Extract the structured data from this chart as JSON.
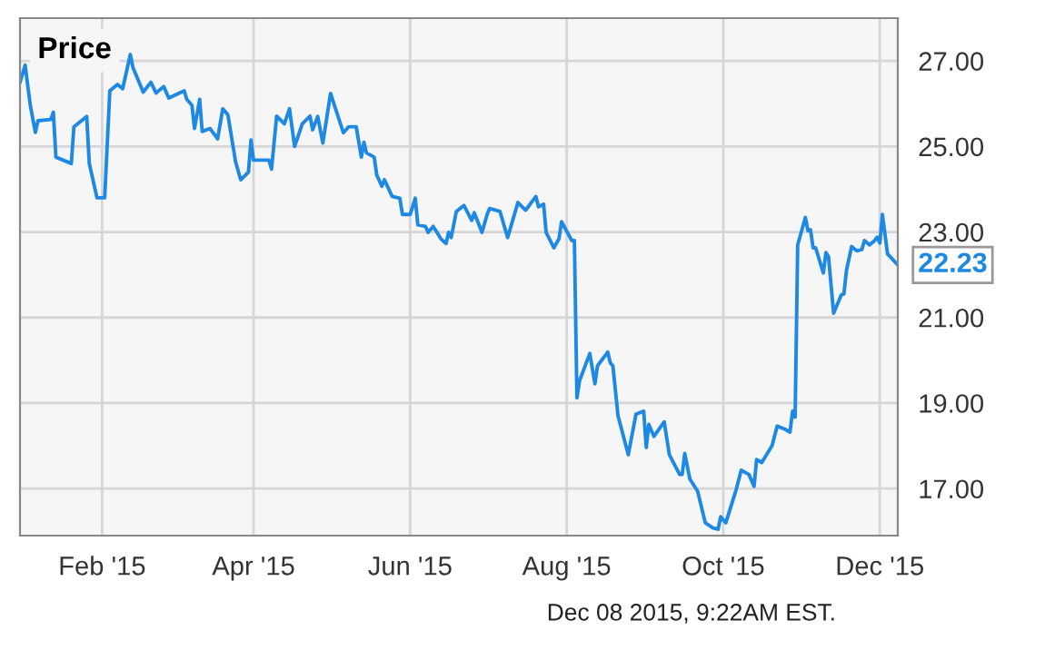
{
  "chart_data": {
    "type": "line",
    "title": "Price",
    "x": [
      "2014-12-31",
      "2015-01-02",
      "2015-01-04",
      "2015-01-06",
      "2015-01-07",
      "2015-01-12",
      "2015-01-13",
      "2015-01-14",
      "2015-01-20",
      "2015-01-21",
      "2015-01-26",
      "2015-01-27",
      "2015-01-30",
      "2015-02-02",
      "2015-02-04",
      "2015-02-07",
      "2015-02-09",
      "2015-02-12",
      "2015-02-13",
      "2015-02-17",
      "2015-02-20",
      "2015-02-22",
      "2015-02-25",
      "2015-02-27",
      "2015-03-05",
      "2015-03-06",
      "2015-03-08",
      "2015-03-09",
      "2015-03-11",
      "2015-03-12",
      "2015-03-15",
      "2015-03-18",
      "2015-03-20",
      "2015-03-22",
      "2015-03-25",
      "2015-03-27",
      "2015-03-30",
      "2015-03-31",
      "2015-04-01",
      "2015-04-07",
      "2015-04-08",
      "2015-04-10",
      "2015-04-13",
      "2015-04-15",
      "2015-04-17",
      "2015-04-20",
      "2015-04-23",
      "2015-04-24",
      "2015-04-26",
      "2015-04-28",
      "2015-05-01",
      "2015-05-06",
      "2015-05-08",
      "2015-05-10",
      "2015-05-11",
      "2015-05-13",
      "2015-05-14",
      "2015-05-15",
      "2015-05-18",
      "2015-05-19",
      "2015-05-21",
      "2015-05-22",
      "2015-05-25",
      "2015-05-28",
      "2015-05-29",
      "2015-06-01",
      "2015-06-03",
      "2015-06-04",
      "2015-06-07",
      "2015-06-08",
      "2015-06-10",
      "2015-06-13",
      "2015-06-15",
      "2015-06-16",
      "2015-06-17",
      "2015-06-19",
      "2015-06-22",
      "2015-06-25",
      "2015-06-26",
      "2015-06-29",
      "2015-07-01",
      "2015-07-02",
      "2015-07-06",
      "2015-07-09",
      "2015-07-13",
      "2015-07-16",
      "2015-07-20",
      "2015-07-21",
      "2015-07-23",
      "2015-07-24",
      "2015-07-27",
      "2015-07-29",
      "2015-07-30",
      "2015-08-03",
      "2015-08-04",
      "2015-08-05",
      "2015-08-06",
      "2015-08-10",
      "2015-08-12",
      "2015-08-13",
      "2015-08-17",
      "2015-08-18",
      "2015-08-19",
      "2015-08-21",
      "2015-08-25",
      "2015-08-28",
      "2015-08-31",
      "2015-09-01",
      "2015-09-02",
      "2015-09-04",
      "2015-09-08",
      "2015-09-10",
      "2015-09-14",
      "2015-09-15",
      "2015-09-16",
      "2015-09-18",
      "2015-09-21",
      "2015-09-24",
      "2015-09-27",
      "2015-09-29",
      "2015-09-30",
      "2015-10-02",
      "2015-10-06",
      "2015-10-08",
      "2015-10-11",
      "2015-10-13",
      "2015-10-14",
      "2015-10-16",
      "2015-10-20",
      "2015-10-22",
      "2015-10-25",
      "2015-10-27",
      "2015-10-28",
      "2015-10-29",
      "2015-10-30",
      "2015-11-02",
      "2015-11-03",
      "2015-11-04",
      "2015-11-05",
      "2015-11-06",
      "2015-11-09",
      "2015-11-10",
      "2015-11-11",
      "2015-11-13",
      "2015-11-16",
      "2015-11-17",
      "2015-11-18",
      "2015-11-20",
      "2015-11-22",
      "2015-11-24",
      "2015-11-25",
      "2015-11-27",
      "2015-11-29",
      "2015-11-30",
      "2015-12-01",
      "2015-12-02",
      "2015-12-04",
      "2015-12-08"
    ],
    "series": [
      {
        "color": "#1e88e5",
        "values": [
          26.5,
          26.9,
          25.97,
          25.33,
          25.6,
          25.63,
          25.8,
          24.75,
          24.6,
          25.46,
          25.7,
          24.6,
          23.8,
          23.8,
          26.3,
          26.45,
          26.35,
          27.15,
          26.85,
          26.27,
          26.5,
          26.25,
          26.4,
          26.13,
          26.3,
          26.1,
          25.96,
          25.42,
          26.1,
          25.35,
          25.42,
          25.18,
          25.88,
          25.74,
          24.64,
          24.22,
          24.4,
          25.15,
          24.68,
          24.68,
          24.47,
          25.71,
          25.53,
          25.88,
          25.0,
          25.53,
          25.71,
          25.39,
          25.7,
          25.08,
          26.24,
          25.32,
          25.46,
          25.46,
          25.46,
          24.75,
          25.1,
          24.85,
          24.75,
          24.33,
          24.07,
          24.22,
          23.83,
          23.79,
          23.41,
          23.41,
          23.79,
          23.17,
          23.13,
          22.99,
          23.13,
          22.84,
          22.73,
          22.99,
          22.87,
          23.48,
          23.62,
          23.27,
          23.45,
          22.99,
          23.41,
          23.55,
          23.48,
          22.87,
          23.69,
          23.51,
          23.83,
          23.59,
          23.65,
          22.99,
          22.63,
          22.84,
          23.24,
          22.8,
          22.8,
          19.12,
          19.52,
          20.16,
          19.45,
          19.87,
          20.19,
          19.94,
          19.87,
          18.7,
          17.79,
          18.74,
          18.81,
          17.96,
          18.5,
          18.22,
          18.56,
          17.79,
          17.33,
          17.33,
          17.82,
          17.22,
          16.94,
          16.2,
          16.08,
          16.05,
          16.34,
          16.2,
          16.97,
          17.43,
          17.33,
          17.05,
          17.68,
          17.61,
          18.0,
          18.46,
          18.39,
          18.32,
          18.81,
          18.67,
          22.7,
          23.34,
          23.03,
          23.05,
          22.63,
          22.63,
          22.04,
          22.52,
          22.42,
          21.1,
          21.53,
          21.55,
          22.1,
          22.66,
          22.56,
          22.59,
          22.8,
          22.7,
          22.8,
          22.88,
          22.74,
          23.41,
          22.49,
          22.23
        ]
      }
    ],
    "xlim": [
      "2014-12-31",
      "2015-12-08"
    ],
    "xticks": [
      {
        "value": "2015-02-01",
        "label": "Feb '15"
      },
      {
        "value": "2015-04-01",
        "label": "Apr '15"
      },
      {
        "value": "2015-06-01",
        "label": "Jun '15"
      },
      {
        "value": "2015-08-01",
        "label": "Aug '15"
      },
      {
        "value": "2015-10-01",
        "label": "Oct '15"
      },
      {
        "value": "2015-12-01",
        "label": "Dec '15"
      }
    ],
    "ylim": [
      15.9,
      28.0
    ],
    "yticks": [
      {
        "value": 17,
        "label": "17.00"
      },
      {
        "value": 19,
        "label": "19.00"
      },
      {
        "value": 21,
        "label": "21.00"
      },
      {
        "value": 23,
        "label": "23.00"
      },
      {
        "value": 25,
        "label": "25.00"
      },
      {
        "value": 27,
        "label": "27.00"
      }
    ],
    "grid": true,
    "annotations": [
      {
        "text": "22.23",
        "x": "2015-12-08",
        "y": 22.23
      },
      "Dec 08 2015, 9:22AM EST."
    ]
  }
}
